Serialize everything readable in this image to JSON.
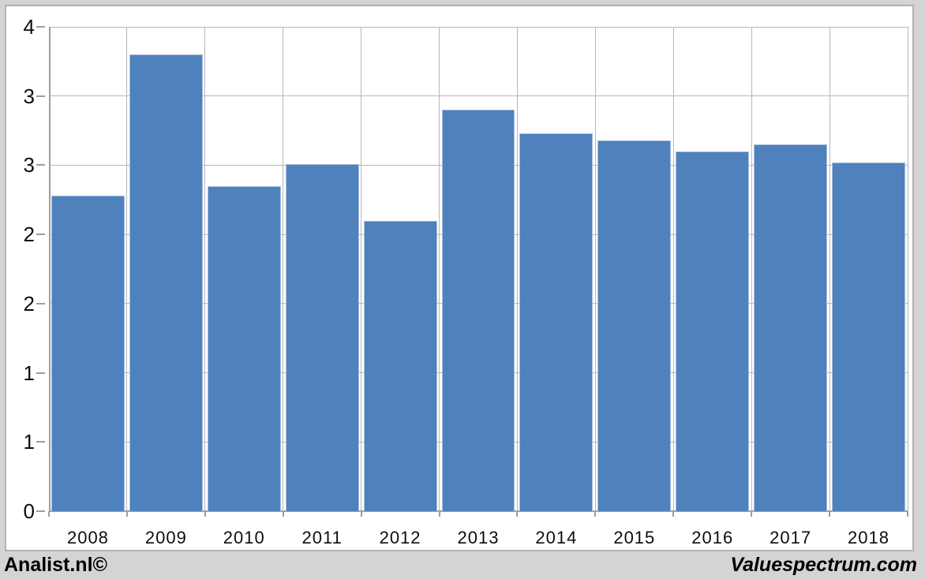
{
  "chart_data": {
    "type": "bar",
    "categories": [
      "2008",
      "2009",
      "2010",
      "2011",
      "2012",
      "2013",
      "2014",
      "2015",
      "2016",
      "2017",
      "2018"
    ],
    "values": [
      2.28,
      3.3,
      2.35,
      2.51,
      2.1,
      2.9,
      2.73,
      2.68,
      2.6,
      2.65,
      2.52
    ],
    "title": "",
    "xlabel": "",
    "ylabel": "",
    "ylim": [
      0,
      3.5
    ],
    "yticks": [
      0,
      0.5,
      1,
      1.5,
      2,
      2.5,
      3,
      3.5
    ],
    "ytick_labels": [
      "0",
      "1",
      "1",
      "2",
      "2",
      "3",
      "3",
      "4"
    ],
    "grid": true,
    "legend": false,
    "bar_color": "#4f81bd",
    "bar_edge_color": "#a9bedd",
    "gridline_color": "#b7b7b7",
    "axis_color": "#9e9e9e"
  },
  "footer": {
    "left": "Analist.nl©",
    "right": "Valuespectrum.com"
  }
}
